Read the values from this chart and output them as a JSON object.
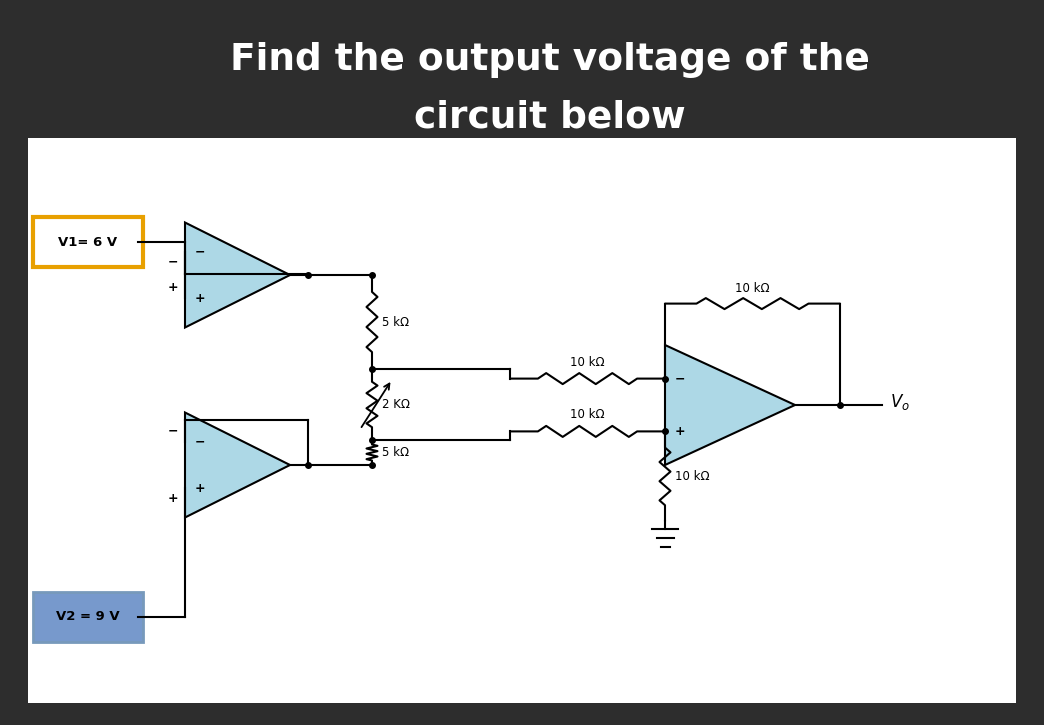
{
  "bg_color": "#2d2d2d",
  "panel_color": "#ffffff",
  "title_line1": "Find the output voltage of the",
  "title_line2": "circuit below",
  "title_color": "#ffffff",
  "title_fontsize": 27,
  "v1_label": "V1= 6 V",
  "v2_label": "V2 = 9 V",
  "v1_border_color": "#e8a000",
  "v1_fill_color": "#ffffff",
  "v2_border_color": "#7799bb",
  "v2_fill_color": "#7799cc",
  "opamp_fill": "#add8e6",
  "opamp_edge": "#000000",
  "wire_color": "#000000",
  "label_color": "#000000",
  "vo_label": "V",
  "vo_sub": "o",
  "r_top": "5 kΩ",
  "r_mid": "2 KΩ",
  "r_bot": "5 kΩ",
  "r_in_top": "10 kΩ",
  "r_in_bot": "10 kΩ",
  "r_fb": "10 kΩ",
  "r_fb_top": "10 kΩ",
  "r_gnd": "10 kΩ"
}
